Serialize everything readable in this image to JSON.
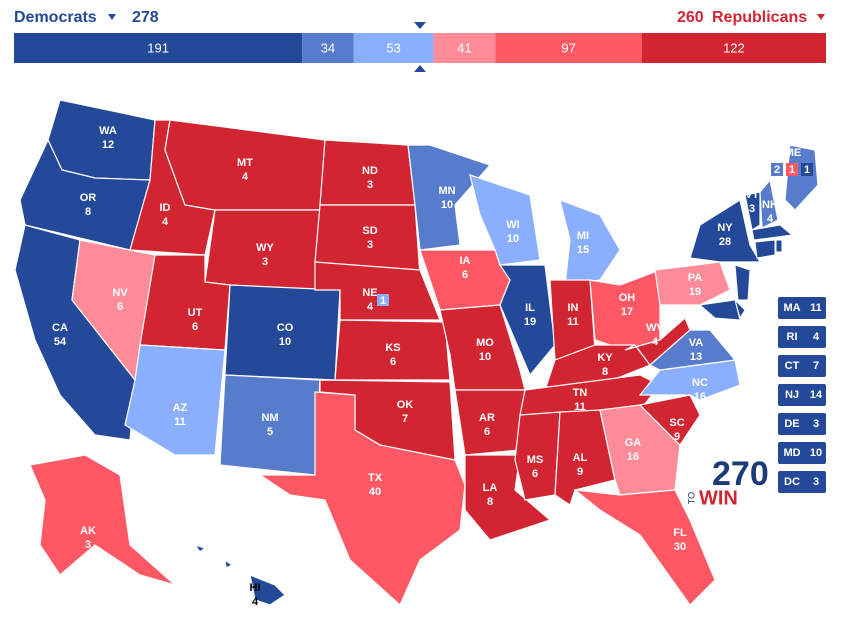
{
  "header": {
    "dem_label": "Democrats",
    "dem_total": 278,
    "rep_total": 260,
    "rep_label": "Republicans"
  },
  "bar": [
    {
      "value": 191,
      "color": "#244999"
    },
    {
      "value": 34,
      "color": "#577ccc"
    },
    {
      "value": 53,
      "color": "#8aafff"
    },
    {
      "value": 41,
      "color": "#ff8b98"
    },
    {
      "value": 97,
      "color": "#ff5865"
    },
    {
      "value": 122,
      "color": "#d22532"
    }
  ],
  "states": [
    {
      "abbr": "WA",
      "votes": 12,
      "color": "#244999"
    },
    {
      "abbr": "OR",
      "votes": 8,
      "color": "#244999"
    },
    {
      "abbr": "CA",
      "votes": 54,
      "color": "#244999"
    },
    {
      "abbr": "ID",
      "votes": 4,
      "color": "#d22532"
    },
    {
      "abbr": "NV",
      "votes": 6,
      "color": "#ff8b98"
    },
    {
      "abbr": "MT",
      "votes": 4,
      "color": "#d22532"
    },
    {
      "abbr": "WY",
      "votes": 3,
      "color": "#d22532"
    },
    {
      "abbr": "UT",
      "votes": 6,
      "color": "#d22532"
    },
    {
      "abbr": "AZ",
      "votes": 11,
      "color": "#8aafff"
    },
    {
      "abbr": "CO",
      "votes": 10,
      "color": "#244999"
    },
    {
      "abbr": "NM",
      "votes": 5,
      "color": "#577ccc"
    },
    {
      "abbr": "ND",
      "votes": 3,
      "color": "#d22532"
    },
    {
      "abbr": "SD",
      "votes": 3,
      "color": "#d22532"
    },
    {
      "abbr": "NE",
      "votes": 4,
      "color": "#d22532",
      "district": 1,
      "district_color": "#8aafff"
    },
    {
      "abbr": "KS",
      "votes": 6,
      "color": "#d22532"
    },
    {
      "abbr": "OK",
      "votes": 7,
      "color": "#d22532"
    },
    {
      "abbr": "TX",
      "votes": 40,
      "color": "#ff5865"
    },
    {
      "abbr": "MN",
      "votes": 10,
      "color": "#577ccc"
    },
    {
      "abbr": "IA",
      "votes": 6,
      "color": "#ff5865"
    },
    {
      "abbr": "MO",
      "votes": 10,
      "color": "#d22532"
    },
    {
      "abbr": "AR",
      "votes": 6,
      "color": "#d22532"
    },
    {
      "abbr": "LA",
      "votes": 8,
      "color": "#d22532"
    },
    {
      "abbr": "WI",
      "votes": 10,
      "color": "#8aafff"
    },
    {
      "abbr": "IL",
      "votes": 19,
      "color": "#244999"
    },
    {
      "abbr": "MI",
      "votes": 15,
      "color": "#8aafff"
    },
    {
      "abbr": "IN",
      "votes": 11,
      "color": "#d22532"
    },
    {
      "abbr": "OH",
      "votes": 17,
      "color": "#ff5865"
    },
    {
      "abbr": "KY",
      "votes": 8,
      "color": "#d22532"
    },
    {
      "abbr": "TN",
      "votes": 11,
      "color": "#d22532"
    },
    {
      "abbr": "MS",
      "votes": 6,
      "color": "#d22532"
    },
    {
      "abbr": "AL",
      "votes": 9,
      "color": "#d22532"
    },
    {
      "abbr": "GA",
      "votes": 16,
      "color": "#ff8b98"
    },
    {
      "abbr": "FL",
      "votes": 30,
      "color": "#ff5865"
    },
    {
      "abbr": "SC",
      "votes": 9,
      "color": "#d22532"
    },
    {
      "abbr": "NC",
      "votes": 16,
      "color": "#8aafff"
    },
    {
      "abbr": "VA",
      "votes": 13,
      "color": "#577ccc"
    },
    {
      "abbr": "WV",
      "votes": 4,
      "color": "#d22532"
    },
    {
      "abbr": "PA",
      "votes": 19,
      "color": "#ff8b98"
    },
    {
      "abbr": "NY",
      "votes": 28,
      "color": "#244999"
    },
    {
      "abbr": "VT",
      "votes": 3,
      "color": "#244999"
    },
    {
      "abbr": "NH",
      "votes": 4,
      "color": "#577ccc"
    },
    {
      "abbr": "AK",
      "votes": 3,
      "color": "#ff5865"
    },
    {
      "abbr": "HI",
      "votes": 4,
      "color": "#244999"
    }
  ],
  "maine": {
    "abbr": "ME",
    "color": "#577ccc",
    "parts": [
      {
        "votes": 2,
        "color": "#577ccc"
      },
      {
        "votes": 1,
        "color": "#ff5865"
      },
      {
        "votes": 1,
        "color": "#244999"
      }
    ]
  },
  "small_states": [
    {
      "abbr": "MA",
      "votes": 11,
      "color": "#244999"
    },
    {
      "abbr": "RI",
      "votes": 4,
      "color": "#244999"
    },
    {
      "abbr": "CT",
      "votes": 7,
      "color": "#244999"
    },
    {
      "abbr": "NJ",
      "votes": 14,
      "color": "#244999"
    },
    {
      "abbr": "DE",
      "votes": 3,
      "color": "#244999"
    },
    {
      "abbr": "MD",
      "votes": 10,
      "color": "#244999"
    },
    {
      "abbr": "DC",
      "votes": 3,
      "color": "#244999"
    }
  ],
  "logo": {
    "number": "270",
    "to": "TO",
    "win": "WIN"
  }
}
